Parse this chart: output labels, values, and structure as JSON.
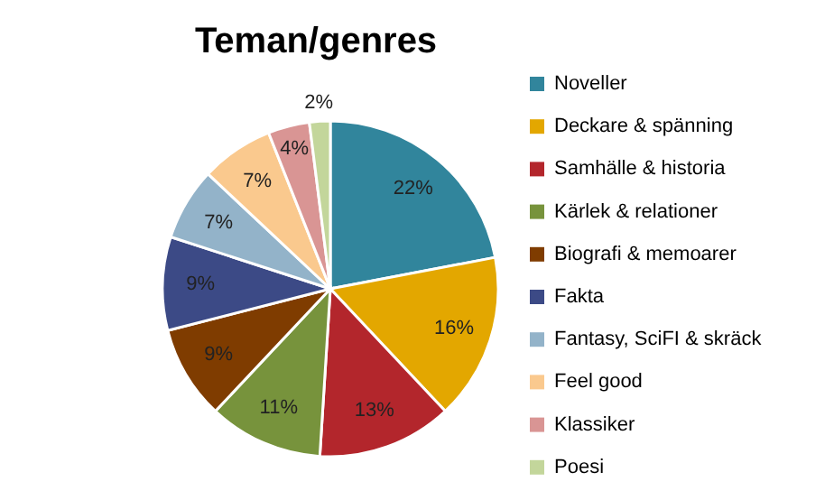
{
  "chart_data": {
    "type": "pie",
    "title": "Teman/genres",
    "categories": [
      "Noveller",
      "Deckare & spänning",
      "Samhälle & historia",
      "Kärlek & relationer",
      "Biografi & memoarer",
      "Fakta",
      "Fantasy, SciFI & skräck",
      "Feel good",
      "Klassiker",
      "Poesi"
    ],
    "values": [
      22,
      16,
      13,
      11,
      9,
      9,
      7,
      7,
      4,
      2
    ],
    "value_labels": [
      "22%",
      "16%",
      "13%",
      "11%",
      "9%",
      "9%",
      "7%",
      "7%",
      "4%",
      "2%"
    ],
    "colors": [
      "#31859c",
      "#e3a700",
      "#b3262c",
      "#77933c",
      "#7f3c00",
      "#3c4a86",
      "#93b3c9",
      "#fac98e",
      "#d99594",
      "#c3d69b"
    ],
    "legend": "right"
  }
}
